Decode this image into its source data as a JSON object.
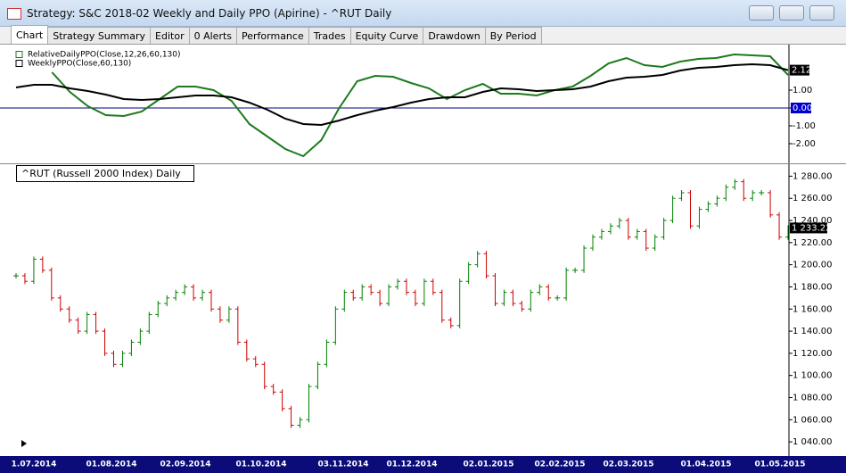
{
  "window": {
    "title": "Strategy: S&C 2018-02 Weekly and Daily PPO (Apirine) - ^RUT Daily",
    "tabs": [
      "Chart",
      "Strategy Summary",
      "Editor",
      "0 Alerts",
      "Performance",
      "Trades",
      "Equity Curve",
      "Drawdown",
      "By Period"
    ]
  },
  "chart_data": [
    {
      "type": "line",
      "series": [
        {
          "name": "RelativeDailyPPO(Close,12,26,60,130)",
          "color": "#1d7a1d",
          "values": [
            null,
            null,
            2.0,
            0.9,
            0.1,
            -0.4,
            -0.45,
            -0.2,
            0.5,
            1.2,
            1.2,
            1.0,
            0.4,
            -0.9,
            -1.6,
            -2.3,
            -2.7,
            -1.8,
            0.0,
            1.5,
            1.8,
            1.75,
            1.4,
            1.1,
            0.5,
            1.0,
            1.35,
            0.8,
            0.8,
            0.7,
            1.0,
            1.2,
            1.8,
            2.5,
            2.8,
            2.4,
            2.3,
            2.6,
            2.75,
            2.8,
            3.0,
            2.95,
            2.9,
            1.85
          ]
        },
        {
          "name": "WeeklyPPO(Close,60,130)",
          "color": "#000000",
          "values": [
            1.15,
            1.3,
            1.3,
            1.1,
            0.95,
            0.75,
            0.5,
            0.45,
            0.5,
            0.6,
            0.7,
            0.7,
            0.6,
            0.3,
            -0.1,
            -0.6,
            -0.9,
            -0.95,
            -0.7,
            -0.4,
            -0.15,
            0.05,
            0.3,
            0.5,
            0.6,
            0.6,
            0.9,
            1.1,
            1.05,
            0.95,
            1.0,
            1.05,
            1.2,
            1.5,
            1.7,
            1.75,
            1.85,
            2.1,
            2.25,
            2.3,
            2.4,
            2.45,
            2.4,
            2.12
          ],
          "last_label": "2.12"
        }
      ],
      "ylim": [
        -3.05,
        3.45
      ],
      "yticks": [
        {
          "value": 1,
          "label": "1.00"
        },
        {
          "value": 0,
          "label": "0.00"
        },
        {
          "value": -1,
          "label": "-1.00"
        },
        {
          "value": -2,
          "label": "-2.00"
        }
      ]
    },
    {
      "type": "bar-ticks",
      "title": "^RUT (Russell 2000 Index) Daily",
      "up_color": "#008000",
      "down_color": "#cc0000",
      "values": [
        1190,
        1185,
        1205,
        1195,
        1170,
        1160,
        1150,
        1140,
        1155,
        1140,
        1120,
        1110,
        1120,
        1130,
        1140,
        1155,
        1165,
        1170,
        1175,
        1180,
        1170,
        1175,
        1160,
        1150,
        1160,
        1130,
        1115,
        1110,
        1090,
        1085,
        1070,
        1055,
        1060,
        1090,
        1110,
        1130,
        1160,
        1175,
        1170,
        1180,
        1175,
        1165,
        1180,
        1185,
        1175,
        1165,
        1185,
        1175,
        1150,
        1145,
        1185,
        1200,
        1210,
        1190,
        1165,
        1175,
        1165,
        1160,
        1175,
        1180,
        1170,
        1170,
        1195,
        1195,
        1215,
        1225,
        1230,
        1235,
        1240,
        1225,
        1230,
        1215,
        1225,
        1240,
        1260,
        1265,
        1235,
        1250,
        1255,
        1260,
        1270,
        1275,
        1260,
        1265,
        1265,
        1245,
        1225,
        1233.22
      ],
      "last_label": "1 233.22",
      "ylim": [
        1028,
        1290
      ],
      "yticks": [
        {
          "value": 1040,
          "label": "1 040.00"
        },
        {
          "value": 1060,
          "label": "1 060.00"
        },
        {
          "value": 1080,
          "label": "1 080.00"
        },
        {
          "value": 1100,
          "label": "1 100.00"
        },
        {
          "value": 1120,
          "label": "1 120.00"
        },
        {
          "value": 1140,
          "label": "1 140.00"
        },
        {
          "value": 1160,
          "label": "1 160.00"
        },
        {
          "value": 1180,
          "label": "1 180.00"
        },
        {
          "value": 1200,
          "label": "1 200.00"
        },
        {
          "value": 1220,
          "label": "1 220.00"
        },
        {
          "value": 1240,
          "label": "1 240.00"
        },
        {
          "value": 1260,
          "label": "1 260.00"
        },
        {
          "value": 1280,
          "label": "1 280.00"
        }
      ],
      "x_labels": [
        "1.07.2014",
        "01.08.2014",
        "02.09.2014",
        "01.10.2014",
        "03.11.2014",
        "01.12.2014",
        "02.01.2015",
        "02.02.2015",
        "02.03.2015",
        "01.04.2015",
        "01.05.2015"
      ]
    }
  ]
}
